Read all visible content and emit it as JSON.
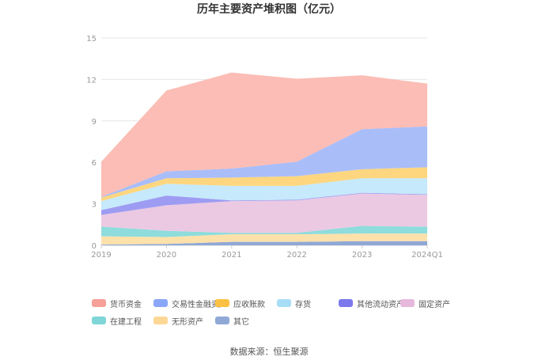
{
  "chart_data": {
    "type": "area",
    "stacked": true,
    "title": "历年主要资产堆积图（亿元）",
    "categories": [
      "2019",
      "2020",
      "2021",
      "2022",
      "2023",
      "2024Q1"
    ],
    "ylim": [
      0,
      15
    ],
    "yticks": [
      0,
      3,
      6,
      9,
      12,
      15
    ],
    "grid": true,
    "legend_position": "bottom",
    "series": [
      {
        "name": "其它",
        "color": "#8fa8d6",
        "values": [
          0.05,
          0.1,
          0.25,
          0.25,
          0.3,
          0.3
        ]
      },
      {
        "name": "无形资产",
        "color": "#fde1ab",
        "values": [
          0.6,
          0.5,
          0.55,
          0.55,
          0.55,
          0.55
        ]
      },
      {
        "name": "在建工程",
        "color": "#8edcdc",
        "values": [
          0.7,
          0.45,
          0.1,
          0.1,
          0.55,
          0.5
        ]
      },
      {
        "name": "固定资产",
        "color": "#ebc9e2",
        "values": [
          0.85,
          1.85,
          2.3,
          2.35,
          2.35,
          2.3
        ]
      },
      {
        "name": "其他流动资产",
        "color": "#9d9cf2",
        "values": [
          0.35,
          0.7,
          0.05,
          0.05,
          0.05,
          0.05
        ]
      },
      {
        "name": "存货",
        "color": "#c6e9fb",
        "values": [
          0.65,
          0.85,
          1.05,
          1.0,
          1.05,
          1.15
        ]
      },
      {
        "name": "应收账款",
        "color": "#fdd67f",
        "values": [
          0.25,
          0.4,
          0.6,
          0.7,
          0.65,
          0.8
        ]
      },
      {
        "name": "交易性金融资产",
        "color": "#a9bdf9",
        "values": [
          0.05,
          0.5,
          0.65,
          1.05,
          2.9,
          2.95
        ]
      },
      {
        "name": "货币资金",
        "color": "#fbbdb5",
        "values": [
          2.55,
          5.85,
          6.95,
          6.0,
          3.9,
          3.1
        ]
      }
    ]
  },
  "legend": {
    "items": [
      {
        "name": "货币资金",
        "color": "#f7a097"
      },
      {
        "name": "交易性金融资产",
        "color": "#8aa6f7"
      },
      {
        "name": "应收账款",
        "color": "#fbc142"
      },
      {
        "name": "存货",
        "color": "#a8ddf7"
      },
      {
        "name": "其他流动资产",
        "color": "#7b79ec"
      },
      {
        "name": "固定资产",
        "color": "#e6b8dc"
      },
      {
        "name": "在建工程",
        "color": "#7fd6d6"
      },
      {
        "name": "无形资产",
        "color": "#fcd796"
      },
      {
        "name": "其它",
        "color": "#8fa8d6"
      }
    ]
  },
  "source": "数据来源：恒生聚源"
}
